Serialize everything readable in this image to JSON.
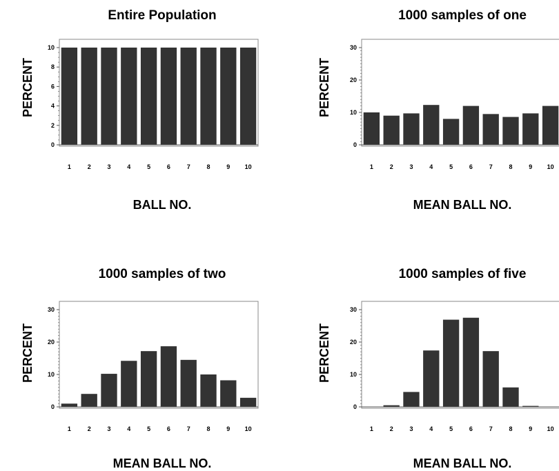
{
  "colors": {
    "bar": "#333333",
    "axis": "#555555",
    "frame": "#888888",
    "text": "#000000"
  },
  "chart_data": [
    {
      "type": "bar",
      "title": "Entire Population",
      "xlabel": "BALL NO.",
      "ylabel": "PERCENT",
      "categories": [
        "1",
        "2",
        "3",
        "4",
        "5",
        "6",
        "7",
        "8",
        "9",
        "10"
      ],
      "values": [
        10,
        10,
        10,
        10,
        10,
        10,
        10,
        10,
        10,
        10
      ],
      "ylim": [
        0,
        10
      ],
      "yticks": [
        0,
        2,
        4,
        6,
        8,
        10
      ],
      "grid": false
    },
    {
      "type": "bar",
      "title": "1000 samples of one",
      "xlabel": "MEAN BALL NO.",
      "ylabel": "PERCENT",
      "categories": [
        "1",
        "2",
        "3",
        "4",
        "5",
        "6",
        "7",
        "8",
        "9",
        "10"
      ],
      "values": [
        10.0,
        9.0,
        9.7,
        12.3,
        8.0,
        12.0,
        9.5,
        8.6,
        9.7,
        12.0
      ],
      "ylim": [
        0,
        30
      ],
      "yticks": [
        0,
        10,
        20,
        30
      ],
      "grid": false
    },
    {
      "type": "bar",
      "title": "1000 samples of two",
      "xlabel": "MEAN BALL NO.",
      "ylabel": "PERCENT",
      "categories": [
        "1",
        "2",
        "3",
        "4",
        "5",
        "6",
        "7",
        "8",
        "9",
        "10"
      ],
      "values": [
        1.0,
        4.0,
        10.2,
        14.2,
        17.2,
        18.7,
        14.5,
        10.0,
        8.2,
        2.8
      ],
      "ylim": [
        0,
        30
      ],
      "yticks": [
        0,
        10,
        20,
        30
      ],
      "grid": false
    },
    {
      "type": "bar",
      "title": "1000 samples of five",
      "xlabel": "MEAN BALL NO.",
      "ylabel": "PERCENT",
      "categories": [
        "1",
        "2",
        "3",
        "4",
        "5",
        "6",
        "7",
        "8",
        "9",
        "10"
      ],
      "values": [
        0,
        0.5,
        4.6,
        17.4,
        26.9,
        27.5,
        17.2,
        6.0,
        0.3,
        0
      ],
      "ylim": [
        0,
        30
      ],
      "yticks": [
        0,
        10,
        20,
        30
      ],
      "grid": false
    }
  ]
}
